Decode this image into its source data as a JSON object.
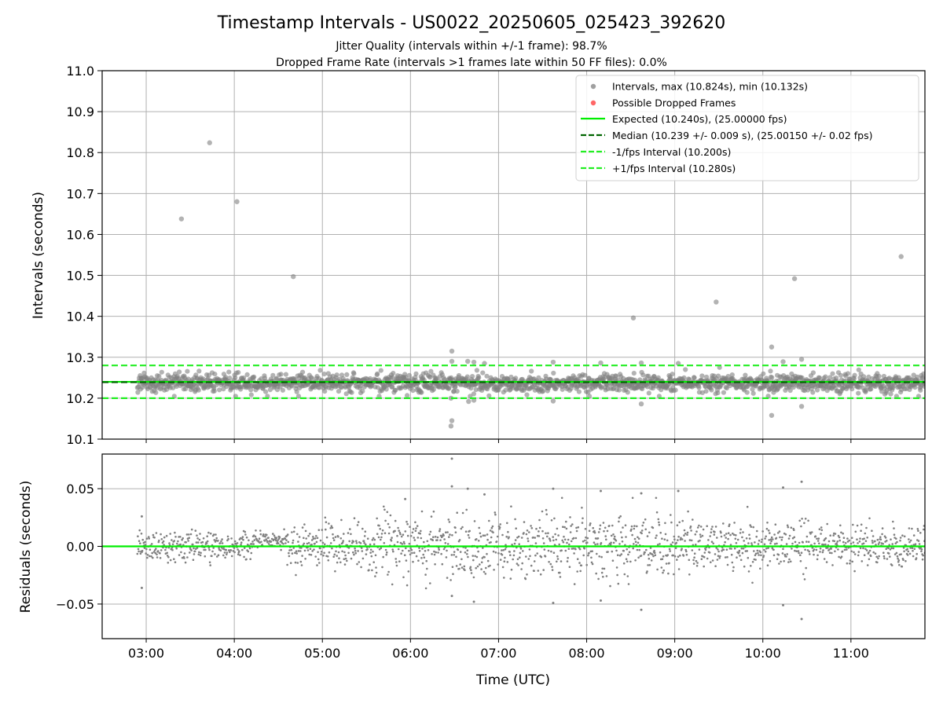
{
  "figure": {
    "title": "Timestamp Intervals - US0022_20250605_025423_392620",
    "subtitle_lines": [
      "Jitter Quality (intervals within +/-1 frame): 98.7%",
      "Dropped Frame Rate (intervals >1 frames late within 50 FF files): 0.0%"
    ],
    "xlabel": "Time (UTC)",
    "x_tick_labels": [
      "03:00",
      "04:00",
      "05:00",
      "06:00",
      "07:00",
      "08:00",
      "09:00",
      "10:00",
      "11:00"
    ],
    "colors": {
      "points": "#808080",
      "dropped": "#ff0000",
      "expected": "#00ee00",
      "median": "#006400",
      "band": "#22ee22",
      "grid": "#b0b0b0"
    }
  },
  "chart_data": [
    {
      "type": "scatter",
      "panel": "intervals",
      "ylabel": "Intervals (seconds)",
      "xlim_hours_utc": [
        2.5,
        11.84
      ],
      "ylim": [
        10.1,
        11.0
      ],
      "y_ticks": [
        10.1,
        10.2,
        10.3,
        10.4,
        10.5,
        10.6,
        10.7,
        10.8,
        10.9,
        11.0
      ],
      "y_tick_labels": [
        "10.1",
        "10.2",
        "10.3",
        "10.4",
        "10.5",
        "10.6",
        "10.7",
        "10.8",
        "10.9",
        "11.0"
      ],
      "grid": true,
      "legend_position": "top-right",
      "legend": [
        {
          "label": "Intervals, max (10.824s), min (10.132s)",
          "marker": "dot",
          "color": "#a0a0a0"
        },
        {
          "label": "Possible Dropped Frames",
          "marker": "dot",
          "color": "#ff6666"
        },
        {
          "label": "Expected (10.240s), (25.00000 fps)",
          "marker": "line",
          "color": "#00ee00"
        },
        {
          "label": "Median (10.239 +/- 0.009 s), (25.00150 +/- 0.02 fps)",
          "marker": "dash",
          "color": "#006400"
        },
        {
          "label": "-1/fps Interval (10.200s)",
          "marker": "dash",
          "color": "#22ee22"
        },
        {
          "label": "+1/fps Interval (10.280s)",
          "marker": "dash",
          "color": "#22ee22"
        }
      ],
      "reference_lines": {
        "expected": 10.24,
        "median": 10.239,
        "lower": 10.2,
        "upper": 10.28
      },
      "bulk_band": {
        "center": 10.237,
        "spread": 0.011,
        "x_start": 2.9,
        "x_end": 11.84
      },
      "outliers": [
        {
          "time": "03:24",
          "x": 3.4,
          "y": 10.638
        },
        {
          "time": "03:43",
          "x": 3.72,
          "y": 10.824
        },
        {
          "time": "04:02",
          "x": 4.03,
          "y": 10.68
        },
        {
          "time": "04:40",
          "x": 4.67,
          "y": 10.497
        },
        {
          "time": "06:28",
          "x": 6.47,
          "y": 10.315
        },
        {
          "time": "06:28",
          "x": 6.47,
          "y": 10.29
        },
        {
          "time": "06:27",
          "x": 6.46,
          "y": 10.2
        },
        {
          "time": "06:28",
          "x": 6.47,
          "y": 10.145
        },
        {
          "time": "06:27",
          "x": 6.46,
          "y": 10.132
        },
        {
          "time": "06:39",
          "x": 6.65,
          "y": 10.29
        },
        {
          "time": "06:43",
          "x": 6.72,
          "y": 10.288
        },
        {
          "time": "06:40",
          "x": 6.66,
          "y": 10.192
        },
        {
          "time": "06:43",
          "x": 6.72,
          "y": 10.195
        },
        {
          "time": "06:50",
          "x": 6.84,
          "y": 10.285
        },
        {
          "time": "07:37",
          "x": 7.62,
          "y": 10.288
        },
        {
          "time": "07:37",
          "x": 7.62,
          "y": 10.193
        },
        {
          "time": "08:10",
          "x": 8.16,
          "y": 10.286
        },
        {
          "time": "08:32",
          "x": 8.53,
          "y": 10.396
        },
        {
          "time": "08:37",
          "x": 8.62,
          "y": 10.286
        },
        {
          "time": "08:37",
          "x": 8.62,
          "y": 10.186
        },
        {
          "time": "09:02",
          "x": 9.04,
          "y": 10.285
        },
        {
          "time": "09:28",
          "x": 9.47,
          "y": 10.435
        },
        {
          "time": "10:06",
          "x": 10.1,
          "y": 10.325
        },
        {
          "time": "10:06",
          "x": 10.1,
          "y": 10.158
        },
        {
          "time": "10:14",
          "x": 10.23,
          "y": 10.289
        },
        {
          "time": "10:21",
          "x": 10.36,
          "y": 10.492
        },
        {
          "time": "10:26",
          "x": 10.44,
          "y": 10.295
        },
        {
          "time": "10:26",
          "x": 10.44,
          "y": 10.18
        },
        {
          "time": "11:34",
          "x": 11.57,
          "y": 10.546
        }
      ]
    },
    {
      "type": "scatter",
      "panel": "residuals",
      "ylabel": "Residuals (seconds)",
      "xlabel": "Time (UTC)",
      "xlim_hours_utc": [
        2.5,
        11.84
      ],
      "ylim": [
        -0.08,
        0.08
      ],
      "y_ticks": [
        -0.05,
        0.0,
        0.05
      ],
      "y_tick_labels": [
        "−0.05",
        "0.00",
        "0.05"
      ],
      "grid": true,
      "zero_line": 0.0,
      "residual_spread": [
        {
          "start": 2.9,
          "end": 4.2,
          "sd": 0.006
        },
        {
          "start": 4.2,
          "end": 4.6,
          "sd": 0.004,
          "offset": 0.006
        },
        {
          "start": 4.6,
          "end": 5.6,
          "sd": 0.01
        },
        {
          "start": 5.6,
          "end": 9.2,
          "sd": 0.014
        },
        {
          "start": 9.2,
          "end": 10.5,
          "sd": 0.011
        },
        {
          "start": 10.5,
          "end": 11.84,
          "sd": 0.008
        }
      ],
      "outliers": [
        {
          "time": "02:57",
          "x": 2.95,
          "y": 0.026
        },
        {
          "time": "02:57",
          "x": 2.95,
          "y": -0.036
        },
        {
          "time": "05:56",
          "x": 5.94,
          "y": 0.041
        },
        {
          "time": "06:28",
          "x": 6.47,
          "y": 0.076
        },
        {
          "time": "06:28",
          "x": 6.47,
          "y": 0.052
        },
        {
          "time": "06:28",
          "x": 6.47,
          "y": -0.043
        },
        {
          "time": "06:39",
          "x": 6.65,
          "y": 0.05
        },
        {
          "time": "06:43",
          "x": 6.72,
          "y": -0.048
        },
        {
          "time": "06:50",
          "x": 6.84,
          "y": 0.045
        },
        {
          "time": "07:37",
          "x": 7.62,
          "y": 0.05
        },
        {
          "time": "07:37",
          "x": 7.62,
          "y": -0.049
        },
        {
          "time": "08:10",
          "x": 8.16,
          "y": 0.048
        },
        {
          "time": "08:10",
          "x": 8.16,
          "y": -0.047
        },
        {
          "time": "08:37",
          "x": 8.62,
          "y": -0.055
        },
        {
          "time": "08:37",
          "x": 8.62,
          "y": 0.046
        },
        {
          "time": "09:02",
          "x": 9.04,
          "y": 0.048
        },
        {
          "time": "10:14",
          "x": 10.23,
          "y": 0.051
        },
        {
          "time": "10:14",
          "x": 10.23,
          "y": -0.051
        },
        {
          "time": "10:26",
          "x": 10.44,
          "y": 0.056
        },
        {
          "time": "10:26",
          "x": 10.44,
          "y": -0.063
        }
      ]
    }
  ]
}
